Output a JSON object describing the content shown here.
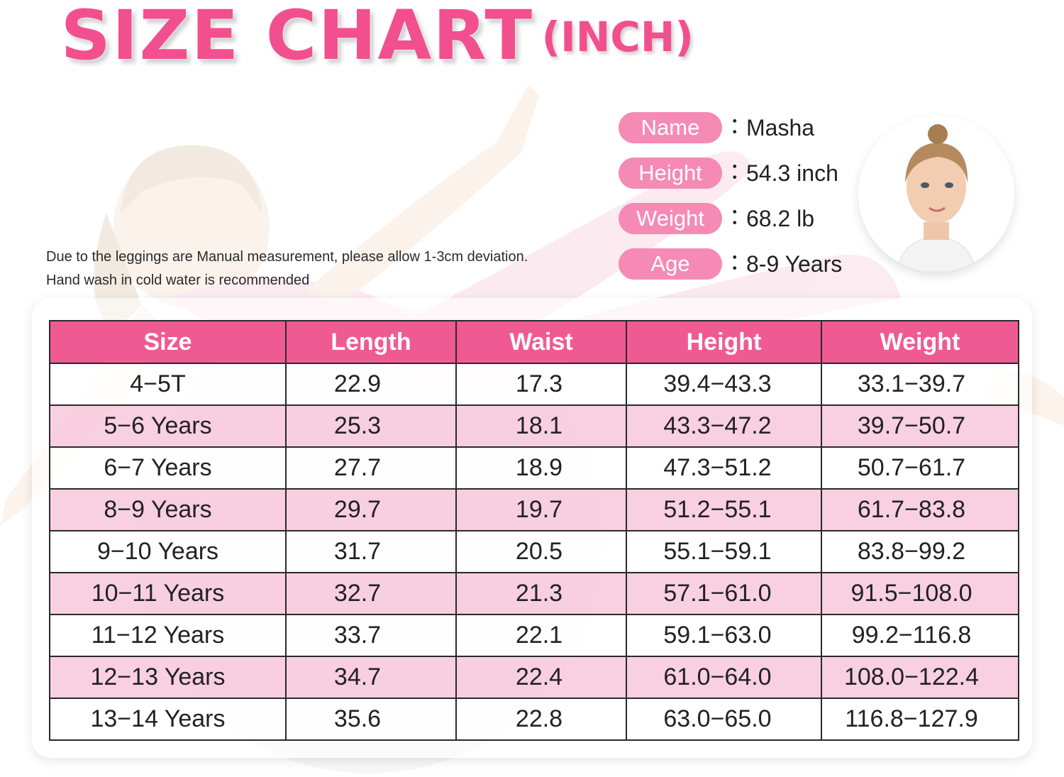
{
  "title": {
    "main": "SIZE  CHART",
    "unit": "(INCH)"
  },
  "model": {
    "fields": [
      {
        "label": "Name",
        "value": "Masha"
      },
      {
        "label": "Height",
        "value": "54.3 inch"
      },
      {
        "label": "Weight",
        "value": "68.2 lb"
      },
      {
        "label": "Age",
        "value": "8-9 Years"
      }
    ],
    "colon": "："
  },
  "notes": {
    "line1": "Due to the leggings are Manual measurement, please allow 1-3cm deviation.",
    "line2": "Hand wash in cold water is recommended"
  },
  "table": {
    "headers": [
      "Size",
      "Length",
      "Waist",
      "Height",
      "Weight"
    ],
    "rows": [
      [
        "4−5T",
        "22.9",
        "17.3",
        "39.4−43.3",
        "33.1−39.7"
      ],
      [
        "5−6 Years",
        "25.3",
        "18.1",
        "43.3−47.2",
        "39.7−50.7"
      ],
      [
        "6−7 Years",
        "27.7",
        "18.9",
        "47.3−51.2",
        "50.7−61.7"
      ],
      [
        "8−9 Years",
        "29.7",
        "19.7",
        "51.2−55.1",
        "61.7−83.8"
      ],
      [
        "9−10 Years",
        "31.7",
        "20.5",
        "55.1−59.1",
        "83.8−99.2"
      ],
      [
        "10−11 Years",
        "32.7",
        "21.3",
        "57.1−61.0",
        "91.5−108.0"
      ],
      [
        "11−12 Years",
        "33.7",
        "22.1",
        "59.1−63.0",
        "99.2−116.8"
      ],
      [
        "12−13 Years",
        "34.7",
        "22.4",
        "61.0−64.0",
        "108.0−122.4"
      ],
      [
        "13−14 Years",
        "35.6",
        "22.8",
        "63.0−65.0",
        "116.8−127.9"
      ]
    ]
  },
  "colors": {
    "brand_pink": "#f24f8f",
    "header_pink": "#f05a93",
    "pill_pink": "#f58ab4",
    "row_pink": "#f8c4da"
  }
}
